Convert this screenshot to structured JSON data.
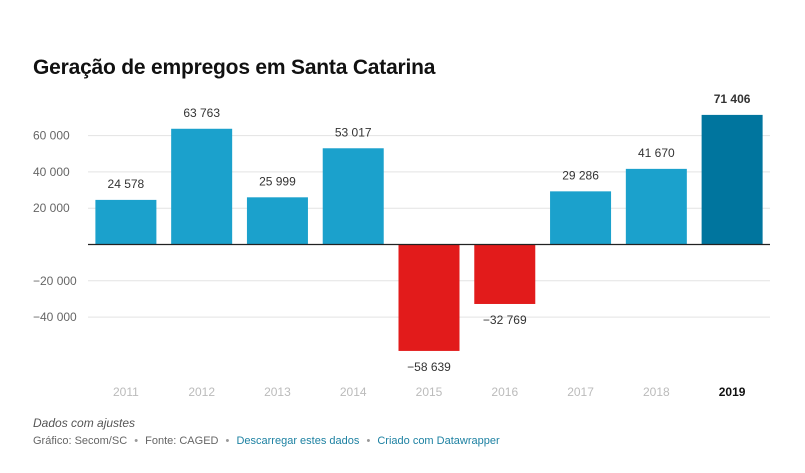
{
  "title": "Geração de empregos em Santa Catarina",
  "notes": "Dados com ajustes",
  "footer": {
    "source_text": "Gráfico: Secom/SC",
    "source_sep": "•",
    "fonte": "Fonte: CAGED",
    "download_link": "Descarregar estes dados",
    "created_link": "Criado com Datawrapper"
  },
  "colors": {
    "positive": "#1ba1cc",
    "negative": "#e21b1b",
    "highlight": "#00759e"
  },
  "chart_data": {
    "type": "bar",
    "title": "Geração de empregos em Santa Catarina",
    "categories": [
      "2011",
      "2012",
      "2013",
      "2014",
      "2015",
      "2016",
      "2017",
      "2018",
      "2019"
    ],
    "values": [
      24578,
      63763,
      25999,
      53017,
      -58639,
      -32769,
      29286,
      41670,
      71406
    ],
    "value_labels": [
      "24 578",
      "63 763",
      "25 999",
      "53 017",
      "−58 639",
      "−32 769",
      "29 286",
      "41 670",
      "71 406"
    ],
    "highlight_category": "2019",
    "yticks": [
      -40000,
      -20000,
      20000,
      40000,
      60000
    ],
    "ytick_labels": [
      "−40 000",
      "−20 000",
      "20 000",
      "40 000",
      "60 000"
    ],
    "ylim": [
      -59000,
      72000
    ],
    "xlabel": "",
    "ylabel": "",
    "grid": true
  }
}
